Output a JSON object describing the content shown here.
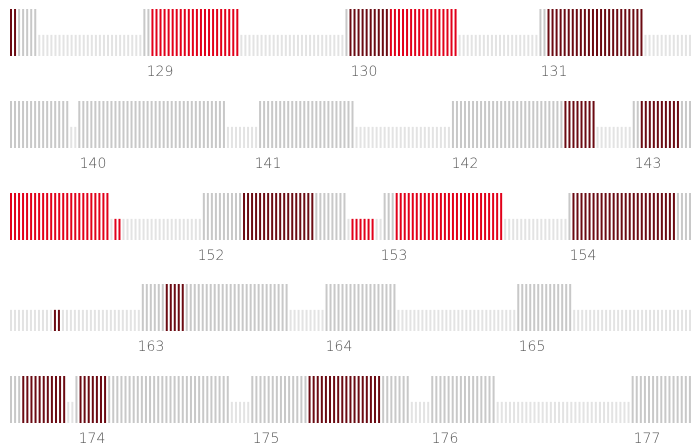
{
  "chart_data": {
    "type": "bar",
    "title": "",
    "xlabel": "",
    "ylabel": "",
    "grid": false,
    "legend": "none",
    "colors": {
      "tall_gray": "#c8c8c8",
      "short_gray": "#e3e3e3",
      "bright_red": "#e2001a",
      "dark_red": "#6b0a12"
    },
    "levels": {
      "tall": 1.0,
      "short": 0.45,
      "tiny": 0.15
    },
    "rows": [
      {
        "ticks": [
          "129",
          "130",
          "131"
        ],
        "segments": [
          {
            "style": "dark_red",
            "count": 2,
            "level": "tall"
          },
          {
            "style": "tall_gray",
            "count": 5,
            "level": "tall"
          },
          {
            "style": "short_gray",
            "count": 26,
            "level": "short"
          },
          {
            "style": "tall_gray",
            "count": 2,
            "level": "tall"
          },
          {
            "style": "bright_red",
            "count": 22,
            "level": "tall"
          },
          {
            "style": "short_gray",
            "count": 26,
            "level": "short"
          },
          {
            "style": "tall_gray",
            "count": 1,
            "level": "tall"
          },
          {
            "style": "dark_red",
            "count": 10,
            "level": "tall"
          },
          {
            "style": "bright_red",
            "count": 17,
            "level": "tall"
          },
          {
            "style": "short_gray",
            "count": 20,
            "level": "short"
          },
          {
            "style": "tall_gray",
            "count": 2,
            "level": "tall"
          },
          {
            "style": "dark_red",
            "count": 24,
            "level": "tall"
          },
          {
            "style": "short_gray",
            "count": 12,
            "level": "short"
          }
        ]
      },
      {
        "ticks": [
          "140",
          "141",
          "142",
          "143"
        ],
        "segments": [
          {
            "style": "tall_gray",
            "count": 15,
            "level": "tall"
          },
          {
            "style": "short_gray",
            "count": 2,
            "level": "short"
          },
          {
            "style": "tall_gray",
            "count": 37,
            "level": "tall"
          },
          {
            "style": "short_gray",
            "count": 8,
            "level": "short"
          },
          {
            "style": "tall_gray",
            "count": 24,
            "level": "tall"
          },
          {
            "style": "short_gray",
            "count": 24,
            "level": "short"
          },
          {
            "style": "tall_gray",
            "count": 28,
            "level": "tall"
          },
          {
            "style": "dark_red",
            "count": 8,
            "level": "tall"
          },
          {
            "style": "short_gray",
            "count": 9,
            "level": "short"
          },
          {
            "style": "tall_gray",
            "count": 2,
            "level": "tall"
          },
          {
            "style": "dark_red",
            "count": 10,
            "level": "tall"
          },
          {
            "style": "tall_gray",
            "count": 3,
            "level": "tall"
          }
        ]
      },
      {
        "ticks": [
          "152",
          "153",
          "154"
        ],
        "segments": [
          {
            "style": "bright_red",
            "count": 25,
            "level": "tall"
          },
          {
            "style": "short_gray",
            "count": 1,
            "level": "short"
          },
          {
            "style": "bright_red",
            "count": 2,
            "level": "short"
          },
          {
            "style": "short_gray",
            "count": 20,
            "level": "short"
          },
          {
            "style": "tall_gray",
            "count": 10,
            "level": "tall"
          },
          {
            "style": "dark_red",
            "count": 18,
            "level": "tall"
          },
          {
            "style": "tall_gray",
            "count": 8,
            "level": "tall"
          },
          {
            "style": "short_gray",
            "count": 1,
            "level": "short"
          },
          {
            "style": "bright_red",
            "count": 6,
            "level": "short"
          },
          {
            "style": "short_gray",
            "count": 2,
            "level": "short"
          },
          {
            "style": "tall_gray",
            "count": 3,
            "level": "tall"
          },
          {
            "style": "bright_red",
            "count": 27,
            "level": "tall"
          },
          {
            "style": "short_gray",
            "count": 16,
            "level": "short"
          },
          {
            "style": "tall_gray",
            "count": 1,
            "level": "tall"
          },
          {
            "style": "dark_red",
            "count": 26,
            "level": "tall"
          },
          {
            "style": "tall_gray",
            "count": 4,
            "level": "tall"
          }
        ]
      },
      {
        "ticks": [
          "163",
          "164",
          "165"
        ],
        "segments": [
          {
            "style": "short_gray",
            "count": 11,
            "level": "short"
          },
          {
            "style": "dark_red",
            "count": 2,
            "level": "short"
          },
          {
            "style": "short_gray",
            "count": 20,
            "level": "short"
          },
          {
            "style": "tall_gray",
            "count": 6,
            "level": "tall"
          },
          {
            "style": "dark_red",
            "count": 5,
            "level": "tall"
          },
          {
            "style": "tall_gray",
            "count": 26,
            "level": "tall"
          },
          {
            "style": "short_gray",
            "count": 9,
            "level": "short"
          },
          {
            "style": "tall_gray",
            "count": 18,
            "level": "tall"
          },
          {
            "style": "short_gray",
            "count": 30,
            "level": "short"
          },
          {
            "style": "tall_gray",
            "count": 14,
            "level": "tall"
          },
          {
            "style": "short_gray",
            "count": 30,
            "level": "short"
          }
        ]
      },
      {
        "ticks": [
          "174",
          "175",
          "176",
          "177"
        ],
        "segments": [
          {
            "style": "tall_gray",
            "count": 3,
            "level": "tall"
          },
          {
            "style": "dark_red",
            "count": 11,
            "level": "tall"
          },
          {
            "style": "short_gray",
            "count": 2,
            "level": "short"
          },
          {
            "style": "tall_gray",
            "count": 1,
            "level": "tall"
          },
          {
            "style": "dark_red",
            "count": 7,
            "level": "tall"
          },
          {
            "style": "tall_gray",
            "count": 30,
            "level": "tall"
          },
          {
            "style": "short_gray",
            "count": 5,
            "level": "short"
          },
          {
            "style": "tall_gray",
            "count": 14,
            "level": "tall"
          },
          {
            "style": "dark_red",
            "count": 18,
            "level": "tall"
          },
          {
            "style": "tall_gray",
            "count": 7,
            "level": "tall"
          },
          {
            "style": "short_gray",
            "count": 5,
            "level": "short"
          },
          {
            "style": "tall_gray",
            "count": 16,
            "level": "tall"
          },
          {
            "style": "short_gray",
            "count": 33,
            "level": "short"
          },
          {
            "style": "tall_gray",
            "count": 15,
            "level": "tall"
          }
        ]
      }
    ]
  }
}
